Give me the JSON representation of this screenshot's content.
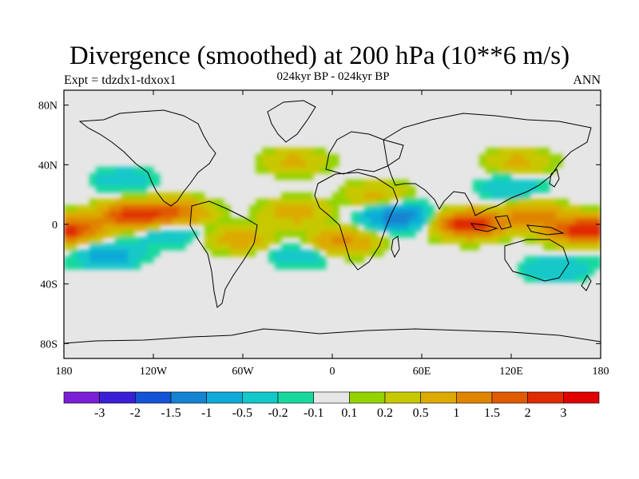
{
  "title": "Divergence (smoothed) at 200 hPa (10**6 m/s)",
  "subtitle": "024kyr BP - 024kyr BP",
  "left_label": "Expt = tdzdx1-tdxox1",
  "right_label": "ANN",
  "icons": [
    "world-coastline-map"
  ],
  "chart_data": {
    "type": "heatmap",
    "projection": "cylindrical-equidistant",
    "variable": "200 hPa divergence (smoothed)",
    "units": "10**6 m/s",
    "x_range": [
      -180,
      180
    ],
    "y_range": [
      -90,
      90
    ],
    "x_ticks": [
      {
        "value": -180,
        "label": "180"
      },
      {
        "value": -120,
        "label": "120W"
      },
      {
        "value": -60,
        "label": "60W"
      },
      {
        "value": 0,
        "label": "0"
      },
      {
        "value": 60,
        "label": "60E"
      },
      {
        "value": 120,
        "label": "120E"
      },
      {
        "value": 180,
        "label": "180"
      }
    ],
    "y_ticks": [
      {
        "value": 80,
        "label": "80N"
      },
      {
        "value": 40,
        "label": "40N"
      },
      {
        "value": 0,
        "label": "0"
      },
      {
        "value": -40,
        "label": "40S"
      },
      {
        "value": -80,
        "label": "80S"
      }
    ],
    "colorbar": {
      "colors": [
        "#7a1fd6",
        "#3a1ed6",
        "#1452d6",
        "#1484d2",
        "#10aad8",
        "#12c8c8",
        "#18d99c",
        "#e6e6e6",
        "#94d300",
        "#c8c800",
        "#dcaa00",
        "#e08400",
        "#e05a00",
        "#e02a00",
        "#e00000"
      ],
      "labels": [
        "-3",
        "-2",
        "-1.5",
        "-1",
        "-0.5",
        "-0.2",
        "-0.1",
        "0.1",
        "0.2",
        "0.5",
        "1",
        "1.5",
        "2",
        "3"
      ]
    },
    "features": [
      {
        "lon": -135,
        "lat": 6,
        "value": 2.2,
        "desc": "ITCZ east Pacific"
      },
      {
        "lon": -105,
        "lat": 8,
        "value": 1.5
      },
      {
        "lon": -175,
        "lat": -4,
        "value": 1.6
      },
      {
        "lon": 165,
        "lat": -4,
        "value": 1.8
      },
      {
        "lon": 92,
        "lat": 0,
        "value": 2.6,
        "desc": "Indian Ocean / maritime continent"
      },
      {
        "lon": 135,
        "lat": 6,
        "value": 1.2
      },
      {
        "lon": 6,
        "lat": -12,
        "value": 1.2,
        "desc": "southern Africa / S Atlantic"
      },
      {
        "lon": -25,
        "lat": 8,
        "value": 0.8
      },
      {
        "lon": -62,
        "lat": -10,
        "value": 0.8
      },
      {
        "lon": -25,
        "lat": 42,
        "value": 0.6
      },
      {
        "lon": 125,
        "lat": 42,
        "value": 0.6
      },
      {
        "lon": 30,
        "lat": 20,
        "value": 0.6
      },
      {
        "lon": -150,
        "lat": -20,
        "value": -0.8
      },
      {
        "lon": -110,
        "lat": -5,
        "value": -0.6
      },
      {
        "lon": 50,
        "lat": 5,
        "value": -0.6
      },
      {
        "lon": 40,
        "lat": 5,
        "value": -0.8
      },
      {
        "lon": -20,
        "lat": -20,
        "value": -0.5
      },
      {
        "lon": 120,
        "lat": 25,
        "value": -0.5
      },
      {
        "lon": -140,
        "lat": 30,
        "value": -0.4
      },
      {
        "lon": 150,
        "lat": -30,
        "value": -0.5
      }
    ]
  }
}
